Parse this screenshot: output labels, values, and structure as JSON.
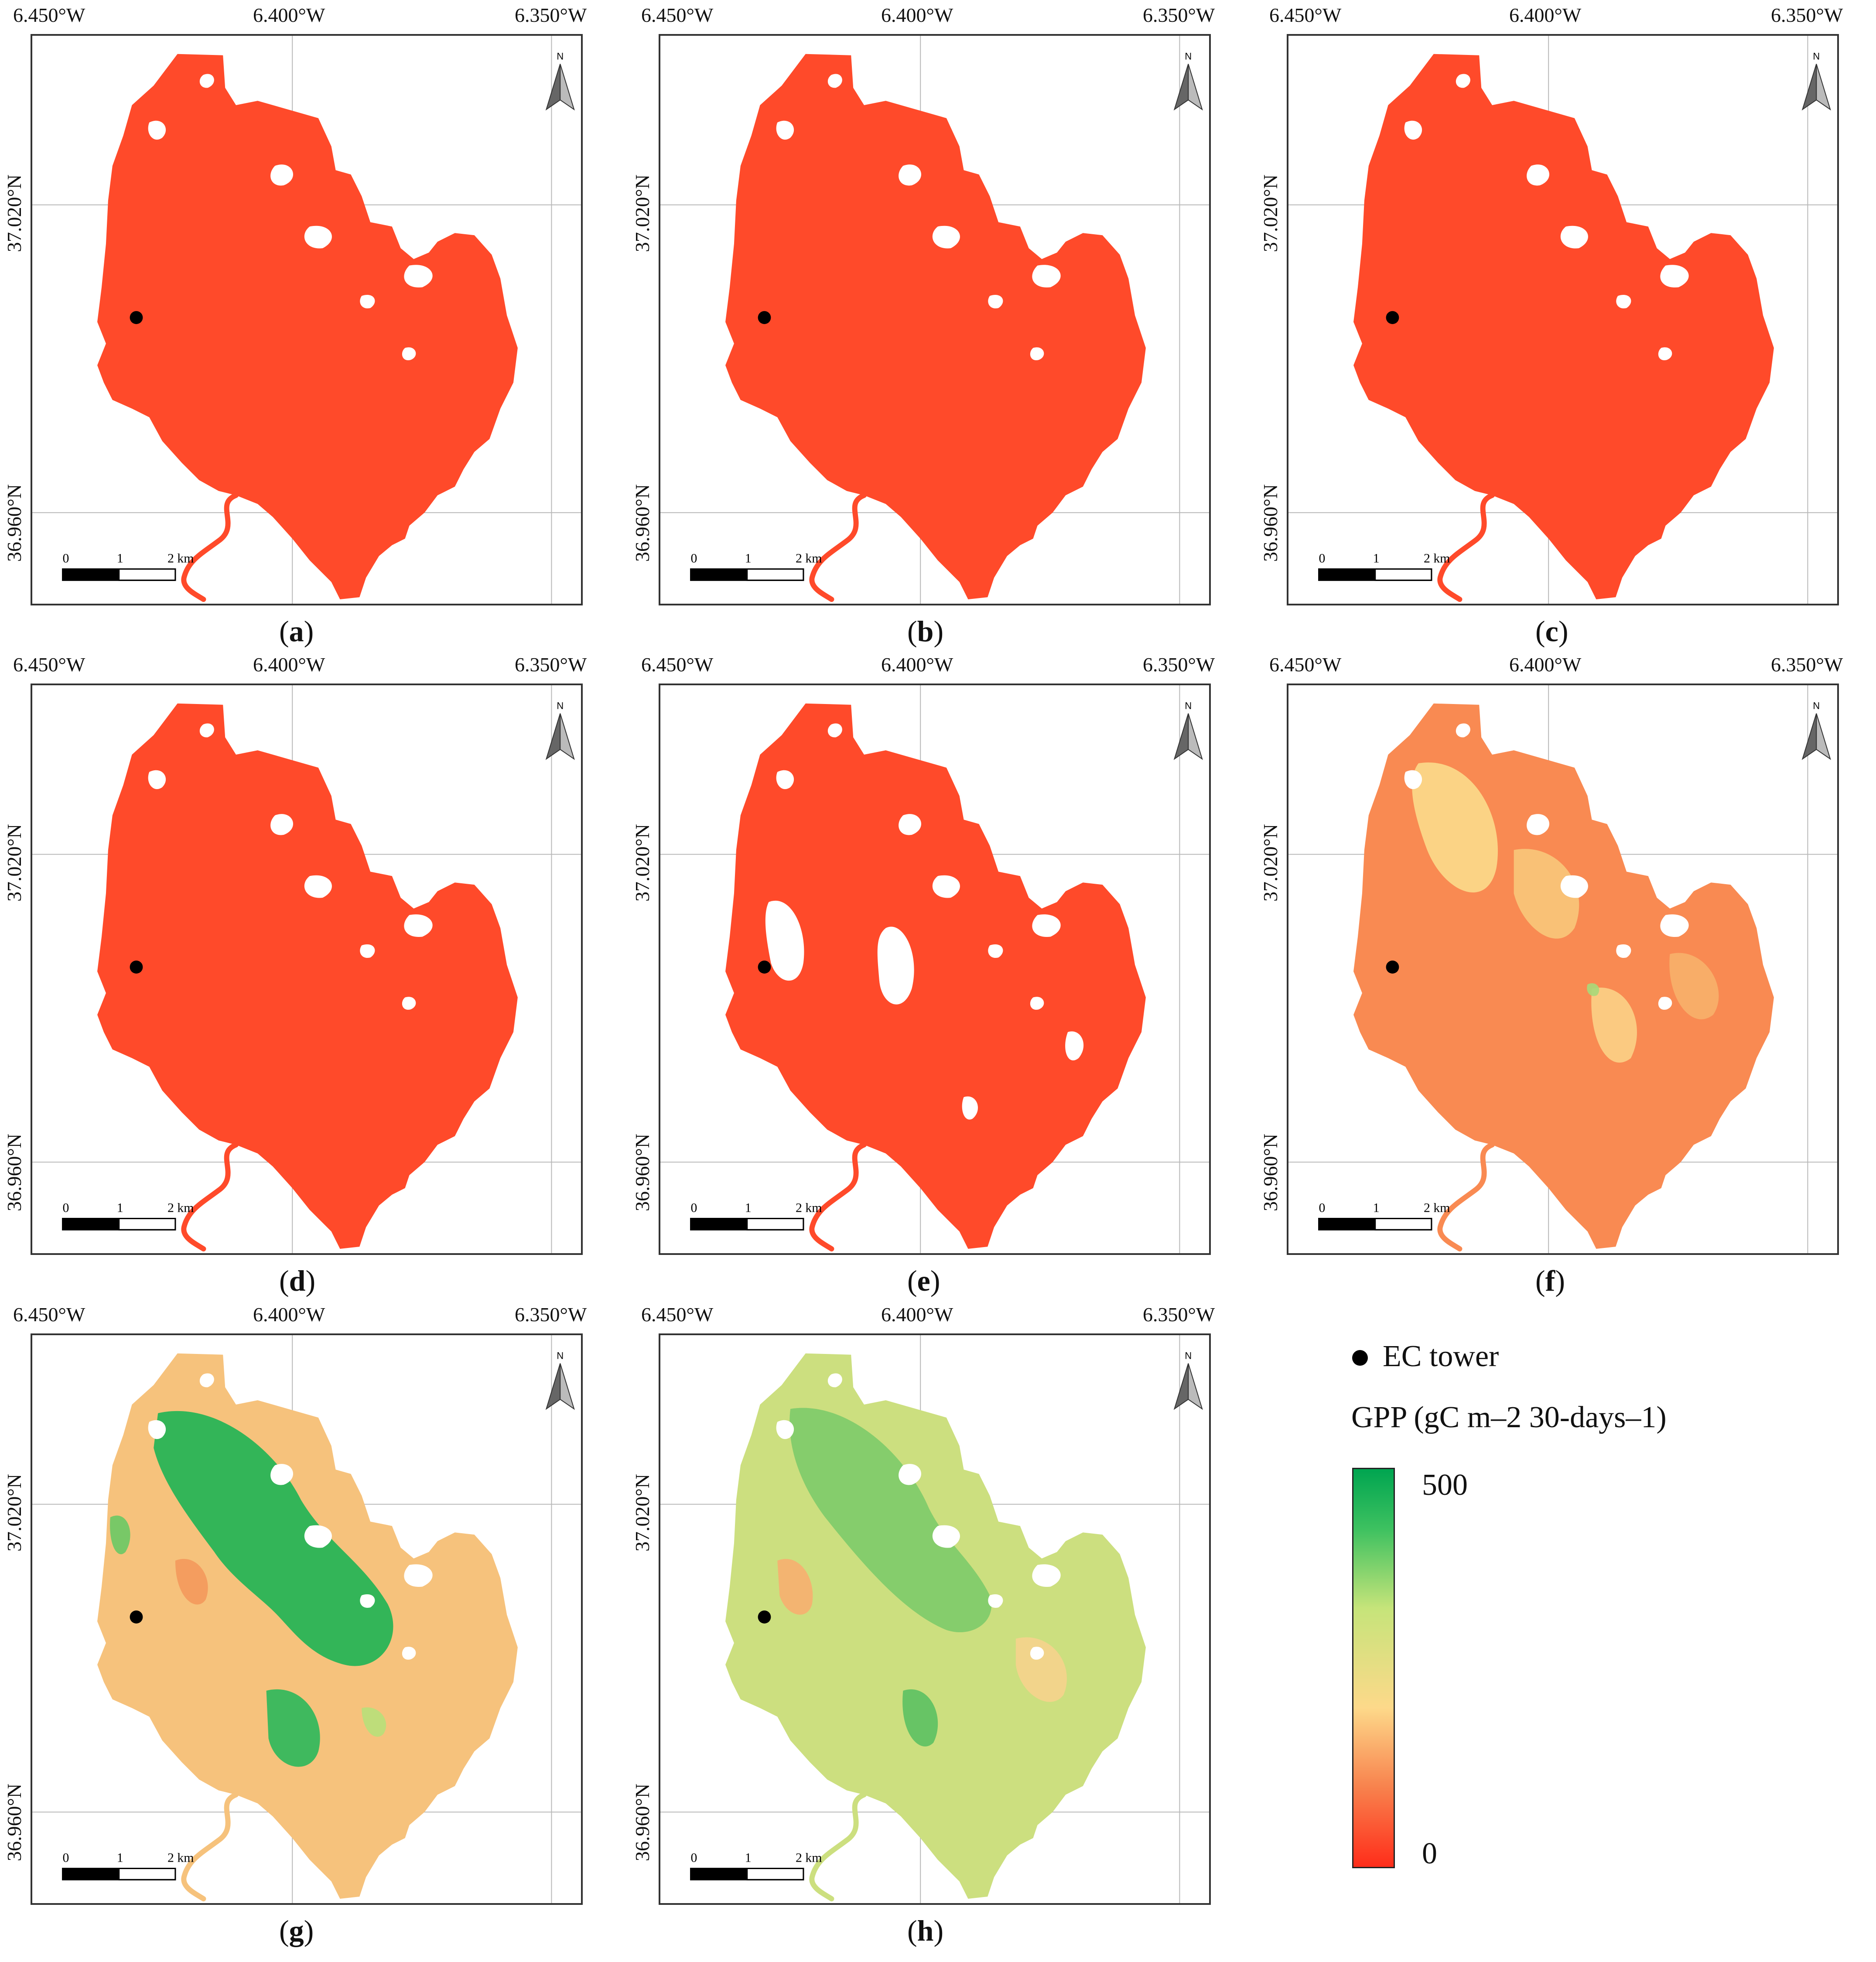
{
  "axes": {
    "lon_ticks": [
      "6.450°W",
      "6.400°W",
      "6.350°W"
    ],
    "lat_ticks": [
      "37.020°N",
      "36.960°N"
    ]
  },
  "scale_bar": {
    "labels": [
      "0",
      "1",
      "2 km"
    ]
  },
  "north_label": "N",
  "panels": [
    {
      "id": "a",
      "letter": "a",
      "palette": "uniform-red"
    },
    {
      "id": "b",
      "letter": "b",
      "palette": "uniform-red"
    },
    {
      "id": "c",
      "letter": "c",
      "palette": "uniform-red"
    },
    {
      "id": "d",
      "letter": "d",
      "palette": "uniform-red"
    },
    {
      "id": "e",
      "letter": "e",
      "palette": "uniform-red-gappy"
    },
    {
      "id": "f",
      "letter": "f",
      "palette": "orange-yellow"
    },
    {
      "id": "g",
      "letter": "g",
      "palette": "green-dominant"
    },
    {
      "id": "h",
      "letter": "h",
      "palette": "green-light"
    }
  ],
  "legend": {
    "marker_label": "EC tower",
    "title": "GPP (gC m–2 30-days–1)",
    "max_label": "500",
    "min_label": "0",
    "colors": {
      "low": "#ff2d1a",
      "mid": "#fdd98a",
      "high": "#00a550"
    }
  }
}
